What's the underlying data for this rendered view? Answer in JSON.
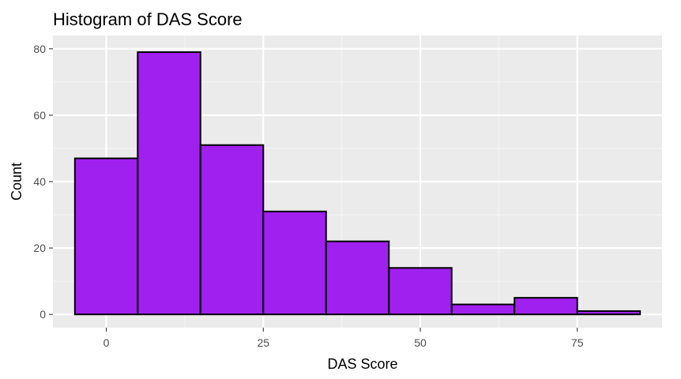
{
  "colors": {
    "panel_background": "#ebebeb",
    "grid_major": "#ffffff",
    "grid_minor": "#f5f5f5",
    "bar_fill": "#a020f0",
    "bar_outline": "#000000",
    "tick_text": "#4d4d4d",
    "tick_mark": "#333333"
  },
  "chart_data": {
    "type": "bar",
    "title": "Histogram of DAS Score",
    "xlabel": "DAS Score",
    "ylabel": "Count",
    "xlim": [
      -8.5,
      88.5
    ],
    "ylim": [
      -4,
      84
    ],
    "x_ticks": [
      0,
      25,
      50,
      75
    ],
    "x_tick_labels": [
      "0",
      "25",
      "50",
      "75"
    ],
    "y_ticks": [
      0,
      20,
      40,
      60,
      80
    ],
    "y_tick_labels": [
      "0",
      "20",
      "40",
      "60",
      "80"
    ],
    "bins": [
      {
        "from": -5,
        "to": 5,
        "count": 47
      },
      {
        "from": 5,
        "to": 15,
        "count": 79
      },
      {
        "from": 15,
        "to": 25,
        "count": 51
      },
      {
        "from": 25,
        "to": 35,
        "count": 31
      },
      {
        "from": 35,
        "to": 45,
        "count": 22
      },
      {
        "from": 45,
        "to": 55,
        "count": 14
      },
      {
        "from": 55,
        "to": 65,
        "count": 3
      },
      {
        "from": 65,
        "to": 75,
        "count": 5
      },
      {
        "from": 75,
        "to": 85,
        "count": 1
      }
    ],
    "grid": true,
    "legend": "none"
  }
}
